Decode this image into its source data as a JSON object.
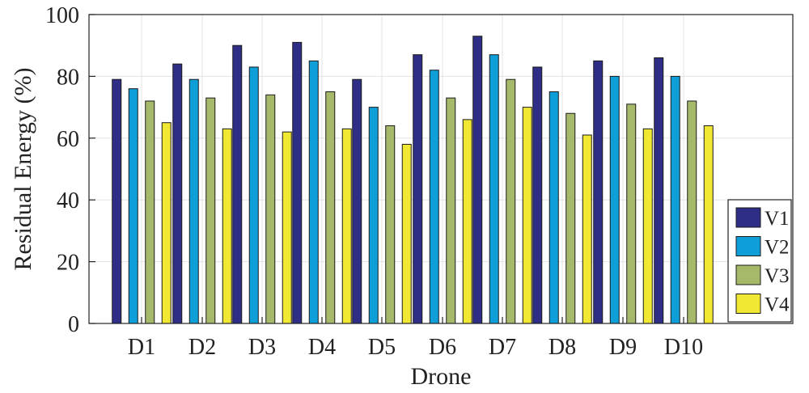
{
  "chart_data": {
    "type": "bar",
    "title": "",
    "xlabel": "Drone",
    "ylabel": "Residual Energy (%)",
    "ylim": [
      0,
      100
    ],
    "yticks": [
      0,
      20,
      40,
      60,
      80,
      100
    ],
    "grid": true,
    "legend_position": "bottom-right",
    "categories": [
      "D1",
      "D2",
      "D3",
      "D4",
      "D5",
      "D6",
      "D7",
      "D8",
      "D9",
      "D10"
    ],
    "series": [
      {
        "name": "V1",
        "color": "#2e2e86",
        "values": [
          79,
          84,
          90,
          91,
          79,
          87,
          93,
          83,
          85,
          86
        ]
      },
      {
        "name": "V2",
        "color": "#0e9ed8",
        "values": [
          76,
          79,
          83,
          85,
          70,
          82,
          87,
          75,
          80,
          80
        ]
      },
      {
        "name": "V3",
        "color": "#a6b96b",
        "values": [
          72,
          73,
          74,
          75,
          64,
          73,
          79,
          68,
          71,
          72
        ]
      },
      {
        "name": "V4",
        "color": "#f0e833",
        "values": [
          65,
          63,
          62,
          63,
          58,
          66,
          70,
          61,
          63,
          64
        ]
      }
    ]
  }
}
